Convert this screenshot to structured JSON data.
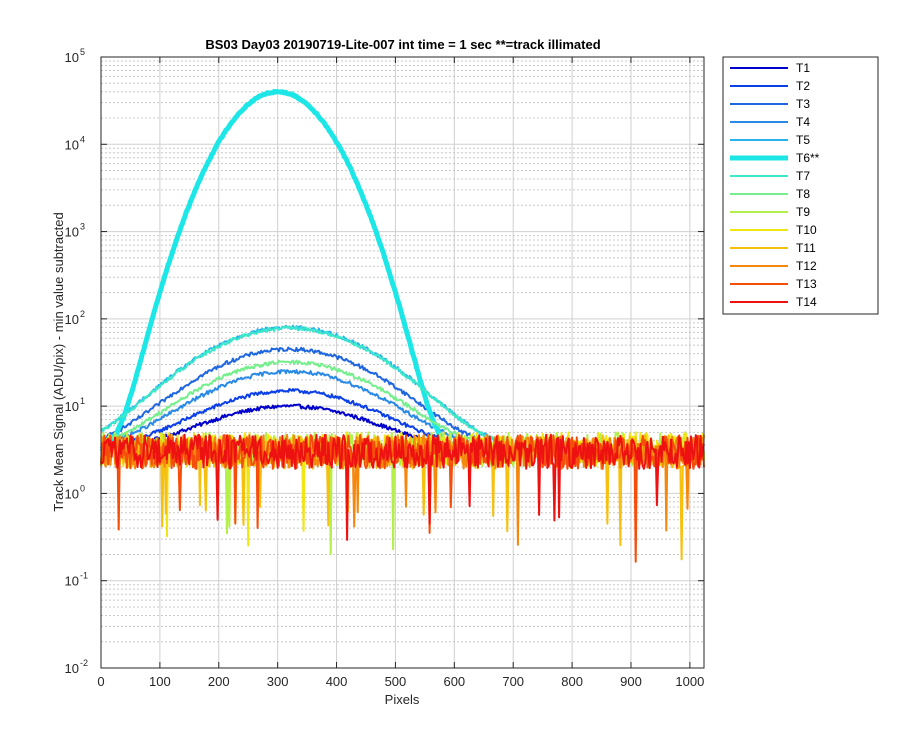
{
  "chart_data": {
    "type": "line",
    "title": "BS03 Day03 20190719-Lite-007 int time = 1 sec    **=track illimated",
    "xlabel": "Pixels",
    "ylabel": "Track Mean Signal (ADU/pix) - min value subtracted",
    "xlim": [
      0,
      1024
    ],
    "ylim_exponent": [
      -2,
      5
    ],
    "y_scale": "log",
    "grid": true,
    "legend_placement": "outside-right",
    "x_ticks": [
      "0",
      "100",
      "200",
      "300",
      "400",
      "500",
      "600",
      "700",
      "800",
      "900",
      "1000"
    ],
    "y_ticks": [
      {
        "base": "10",
        "exp": "-2"
      },
      {
        "base": "10",
        "exp": "-1"
      },
      {
        "base": "10",
        "exp": "0"
      },
      {
        "base": "10",
        "exp": "1"
      },
      {
        "base": "10",
        "exp": "2"
      },
      {
        "base": "10",
        "exp": "3"
      },
      {
        "base": "10",
        "exp": "4"
      },
      {
        "base": "10",
        "exp": "5"
      }
    ],
    "series": [
      {
        "name": "T1",
        "color": "#0000cc",
        "peak_value": 10,
        "baseline": 3.0,
        "width": 2
      },
      {
        "name": "T2",
        "color": "#0b3fe8",
        "peak_value": 15,
        "baseline": 3.0,
        "width": 2
      },
      {
        "name": "T3",
        "color": "#1f67e0",
        "peak_value": 45,
        "baseline": 3.0,
        "width": 2
      },
      {
        "name": "T4",
        "color": "#2a8ae8",
        "peak_value": 25,
        "baseline": 3.0,
        "width": 2
      },
      {
        "name": "T5",
        "color": "#27b3ee",
        "peak_value": 80,
        "baseline": 3.0,
        "width": 2
      },
      {
        "name": "T6**",
        "color": "#1ce6e6",
        "peak_value": 40000,
        "baseline": 3.0,
        "width": 5
      },
      {
        "name": "T7",
        "color": "#3de8c8",
        "peak_value": 78,
        "baseline": 3.0,
        "width": 2
      },
      {
        "name": "T8",
        "color": "#74ef8c",
        "peak_value": 32,
        "baseline": 3.0,
        "width": 2
      },
      {
        "name": "T9",
        "color": "#b5f04a",
        "peak_value": 6,
        "baseline": 3.2,
        "width": 2
      },
      {
        "name": "T10",
        "color": "#f0e614",
        "peak_value": 5,
        "baseline": 3.2,
        "width": 2
      },
      {
        "name": "T11",
        "color": "#f5c00e",
        "peak_value": 4,
        "baseline": 3.0,
        "width": 2
      },
      {
        "name": "T12",
        "color": "#f5870c",
        "peak_value": 4,
        "baseline": 3.0,
        "width": 2
      },
      {
        "name": "T13",
        "color": "#f54d0a",
        "peak_value": 3.5,
        "baseline": 3.0,
        "width": 2
      },
      {
        "name": "T14",
        "color": "#ee1111",
        "peak_value": 3,
        "baseline": 3.0,
        "width": 2
      }
    ]
  }
}
